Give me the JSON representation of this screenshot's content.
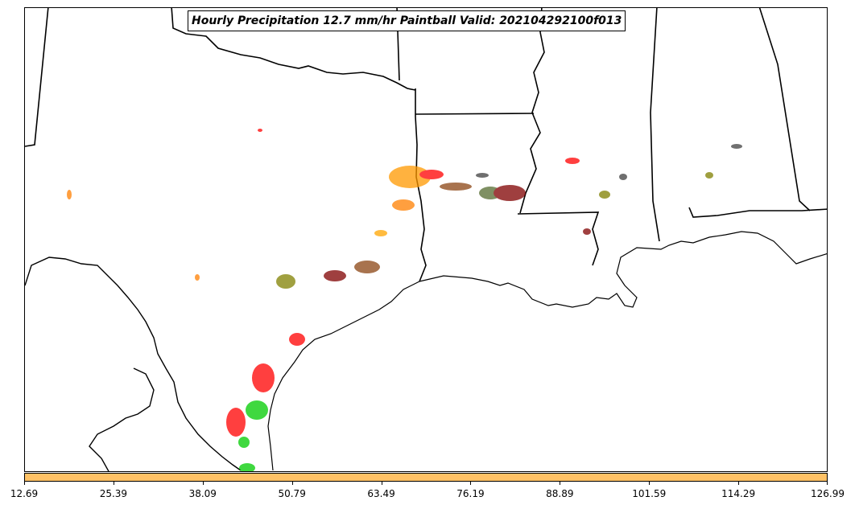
{
  "title": "Hourly Precipitation 12.7 mm/hr Paintball Valid: 202104292100f013",
  "colors": {
    "colorbar": "#ffc266",
    "coastline": "#000000",
    "paintball_palette": [
      "#ff0000",
      "#ff7f00",
      "#00cc00",
      "#8b4513",
      "#808000",
      "#800000",
      "#404040",
      "#ff9900",
      "#556b2f",
      "#ffa500"
    ]
  },
  "colorbar": {
    "tick_labels": [
      "12.69",
      "25.39",
      "38.09",
      "50.79",
      "63.49",
      "76.19",
      "88.89",
      "101.59",
      "114.29",
      "126.99"
    ]
  },
  "map": {
    "region": "Texas / Gulf Coast",
    "features": [
      "state-borders",
      "coastline",
      "international-border"
    ]
  }
}
